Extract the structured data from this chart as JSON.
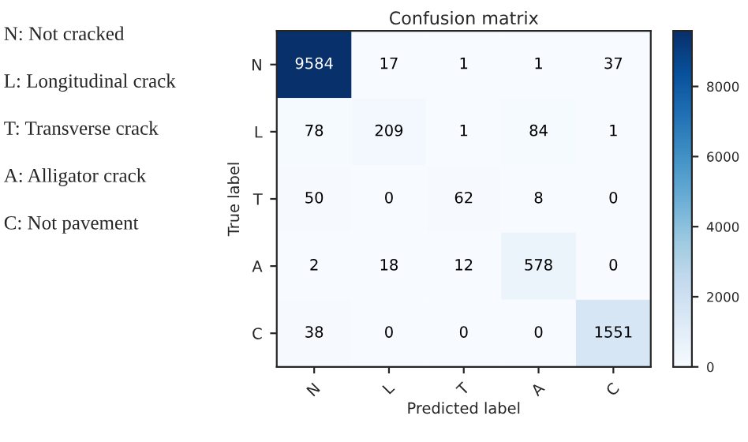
{
  "chart_data": {
    "type": "heatmap",
    "title": "Confusion matrix",
    "xlabel": "Predicted label",
    "ylabel": "True label",
    "categories": [
      "N",
      "L",
      "T",
      "A",
      "C"
    ],
    "y_categories": [
      "N",
      "L",
      "T",
      "A",
      "C"
    ],
    "cells": [
      [
        9584,
        17,
        1,
        1,
        37
      ],
      [
        78,
        209,
        1,
        84,
        1
      ],
      [
        50,
        0,
        62,
        8,
        0
      ],
      [
        2,
        18,
        12,
        578,
        0
      ],
      [
        38,
        0,
        0,
        0,
        1551
      ]
    ],
    "clim": [
      0,
      9584
    ],
    "cticks": [
      0,
      2000,
      4000,
      6000,
      8000
    ],
    "data_labels": true,
    "annotations": [
      "N: Not cracked",
      "L: Longitudinal crack",
      "T: Transverse crack",
      "A: Alligator crack",
      "C: Not pavement"
    ]
  }
}
